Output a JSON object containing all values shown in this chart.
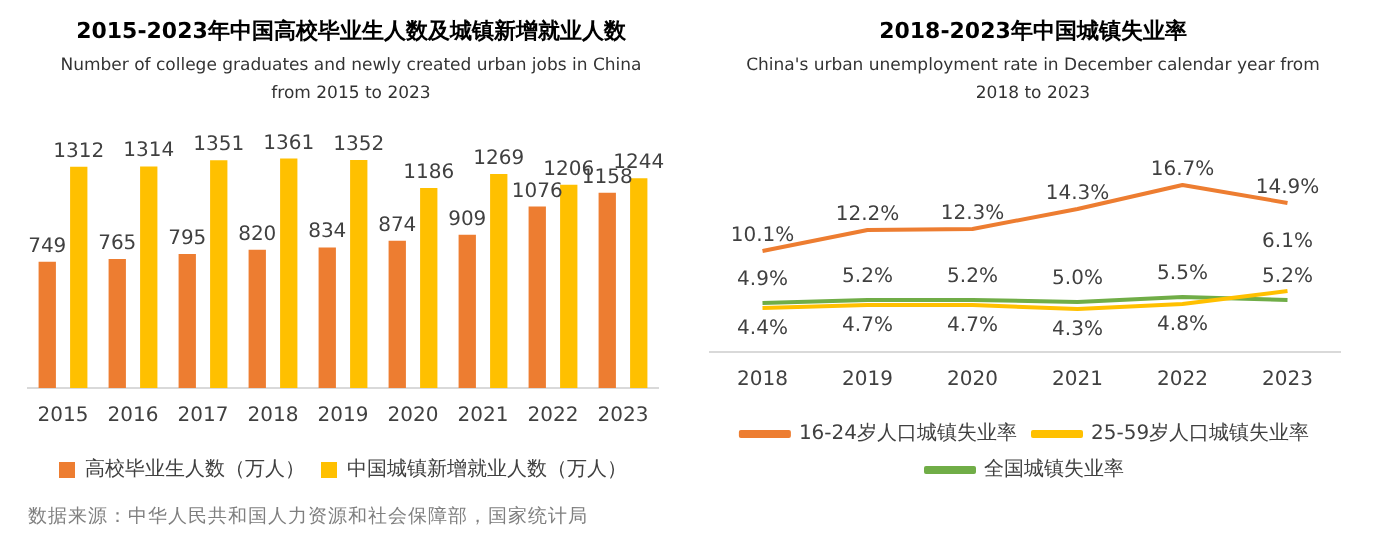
{
  "chart_data": [
    {
      "type": "bar",
      "title": "2015-2023年中国高校毕业生人数及城镇新增就业人数",
      "subtitle": "Number of college graduates and newly created urban jobs in China from 2015 to 2023",
      "categories": [
        "2015",
        "2016",
        "2017",
        "2018",
        "2019",
        "2020",
        "2021",
        "2022",
        "2023"
      ],
      "series": [
        {
          "name": "高校毕业生人数（万人）",
          "color": "#ed7d31",
          "values": [
            749,
            765,
            795,
            820,
            834,
            874,
            909,
            1076,
            1158
          ]
        },
        {
          "name": "中国城镇新增就业人数（万人）",
          "color": "#ffc000",
          "values": [
            1312,
            1314,
            1351,
            1361,
            1352,
            1186,
            1269,
            1206,
            1244
          ]
        }
      ],
      "data_labels": true,
      "legend": "bottom",
      "grid": false,
      "tick_labels": "x",
      "annotations": [
        "数据来源：中华人民共和国人力资源和社会保障部，国家统计局"
      ]
    },
    {
      "type": "line",
      "title": "2018-2023年中国城镇失业率",
      "subtitle": "China's urban unemployment rate in December  calendar year from 2018 to 2023",
      "categories": [
        "2018",
        "2019",
        "2020",
        "2021",
        "2022",
        "2023"
      ],
      "series": [
        {
          "name": "16-24岁人口城镇失业率",
          "color": "#ed7d31",
          "values": [
            10.1,
            12.2,
            12.3,
            14.3,
            16.7,
            14.9
          ],
          "value_labels": [
            "10.1%",
            "12.2%",
            "12.3%",
            "14.3%",
            "16.7%",
            "14.9%"
          ]
        },
        {
          "name": "25-59岁人口城镇失业率",
          "color": "#ffc000",
          "values": [
            4.4,
            4.7,
            4.7,
            4.3,
            4.8,
            6.1
          ],
          "value_labels": [
            "4.4%",
            "4.7%",
            "4.7%",
            "4.3%",
            "4.8%",
            "6.1%"
          ]
        },
        {
          "name": "全国城镇失业率",
          "color": "#70ad47",
          "values": [
            4.9,
            5.2,
            5.2,
            5.0,
            5.5,
            5.2
          ],
          "value_labels": [
            "4.9%",
            "5.2%",
            "5.2%",
            "5.0%",
            "5.5%",
            "5.2%"
          ]
        }
      ],
      "marker": "none",
      "legend": "bottom",
      "grid": false,
      "tick_labels": "x"
    }
  ]
}
